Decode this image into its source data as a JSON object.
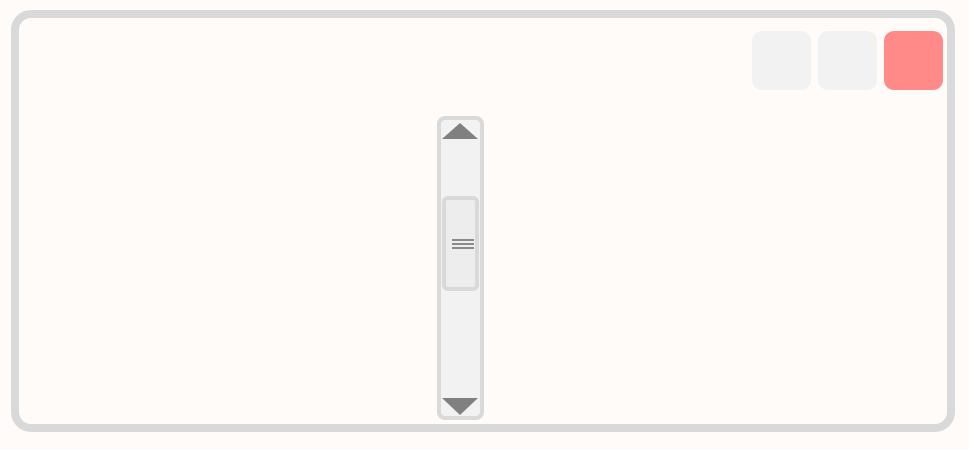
{
  "window": {
    "controls": [
      {
        "name": "minimize-button",
        "color": "#f2f2f2"
      },
      {
        "name": "maximize-button",
        "color": "#f2f2f2"
      },
      {
        "name": "close-button",
        "color": "#ff8a88"
      }
    ]
  },
  "scrollbar": {
    "orientation": "vertical",
    "thumb_position_fraction": 0.3,
    "thumb_size_fraction": 0.33,
    "up_arrow_icon": "triangle-up-icon",
    "down_arrow_icon": "triangle-down-icon",
    "grip_icon": "grip-lines-icon"
  },
  "colors": {
    "background": "#fffbf8",
    "border": "#d9d9d9",
    "track": "#f2f2f2",
    "arrow": "#808080",
    "close": "#ff8a88"
  }
}
